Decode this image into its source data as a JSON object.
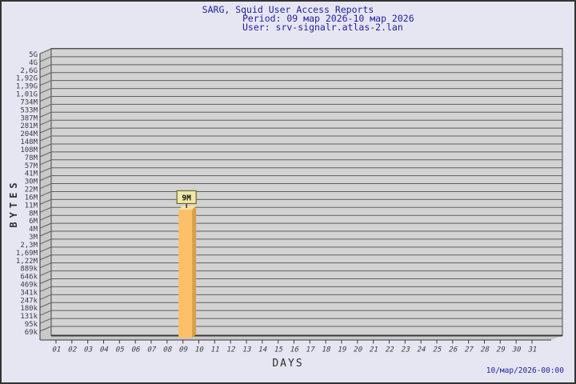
{
  "header": {
    "title": "SARG, Squid User Access Reports",
    "period": "Period: 09 мар 2026-10 мар 2026",
    "user": "User: srv-signalr.atlas-2.lan"
  },
  "footer": {
    "timestamp": "10/мар/2026-00:00"
  },
  "chart_data": {
    "type": "bar",
    "scale": "log",
    "title": "SARG, Squid User Access Reports",
    "xlabel": "DAYS",
    "ylabel": "BYTES",
    "grid": "horizontal",
    "x_ticks": [
      "01",
      "02",
      "03",
      "04",
      "05",
      "06",
      "07",
      "08",
      "09",
      "10",
      "11",
      "12",
      "13",
      "14",
      "15",
      "16",
      "17",
      "18",
      "19",
      "20",
      "21",
      "22",
      "23",
      "24",
      "25",
      "26",
      "27",
      "28",
      "29",
      "30",
      "31"
    ],
    "y_ticks": [
      "5G",
      "4G",
      "2,6G",
      "1,92G",
      "1,39G",
      "1,01G",
      "734M",
      "533M",
      "387M",
      "281M",
      "204M",
      "148M",
      "108M",
      "78M",
      "57M",
      "41M",
      "30M",
      "22M",
      "16M",
      "11M",
      "8M",
      "6M",
      "4M",
      "3M",
      "2,3M",
      "1,69M",
      "1,22M",
      "889k",
      "646k",
      "469k",
      "341k",
      "247k",
      "180k",
      "131k",
      "95k",
      "69k"
    ],
    "y_range_bytes": [
      69000,
      5000000000
    ],
    "bars": [
      {
        "x": "09",
        "label": "9M",
        "value_bytes": 9000000
      }
    ]
  },
  "colors": {
    "background": "#e6e6f3",
    "title_text": "#1e1e9c",
    "plot_face": "#d3d3d3",
    "wall_face": "#c9c9c9",
    "gridline": "#5f5f5f",
    "axis_line": "#3a3a3a",
    "axis_text": "#3b3b3b",
    "bar_front": "#fdc06a",
    "bar_side": "#d9a04a",
    "bar_top": "#f3e3a4",
    "bar_label_bg": "#efe8a8",
    "bar_label_border": "#6a6a33"
  }
}
